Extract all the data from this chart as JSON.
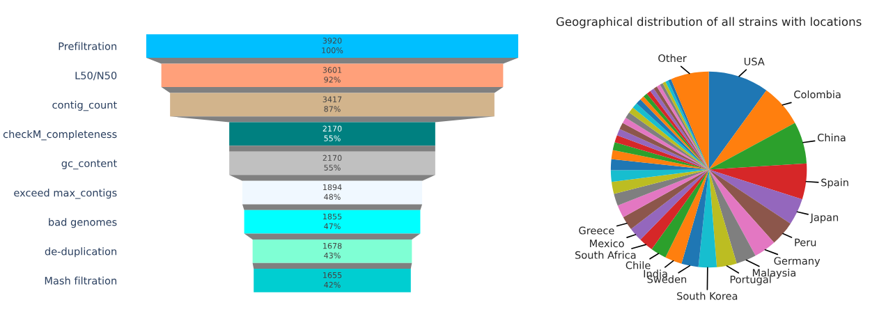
{
  "chart_data": [
    {
      "type": "other",
      "categories": [
        "Prefiltration",
        "L50/N50",
        "contig_count",
        "checkM_completeness",
        "gc_content",
        "exceed max_contigs",
        "bad genomes",
        "de-duplication",
        "Mash filtration"
      ],
      "values": [
        3920,
        3601,
        3417,
        2170,
        2170,
        1894,
        1855,
        1678,
        1655
      ],
      "data_labels": true,
      "annotations": [
        {
          "text": "100%",
          "y": "Prefiltration"
        },
        {
          "text": "92%",
          "y": "L50/N50"
        },
        {
          "text": "87%",
          "y": "contig_count"
        },
        {
          "text": "55%",
          "y": "checkM_completeness"
        },
        {
          "text": "55%",
          "y": "gc_content"
        },
        {
          "text": "48%",
          "y": "exceed max_contigs"
        },
        {
          "text": "47%",
          "y": "bad genomes"
        },
        {
          "text": "43%",
          "y": "de-duplication"
        },
        {
          "text": "42%",
          "y": "Mash filtration"
        }
      ],
      "colors": [
        "#00bfff",
        "#ffa07a",
        "#d2b48c",
        "#008080",
        "#c0c0c0",
        "#f0f8ff",
        "#00ffff",
        "#7fffd4",
        "#00ced1"
      ]
    },
    {
      "type": "pie",
      "title": "Geographical distribution of all strains with locations",
      "categories": [
        "USA",
        "Colombia",
        "China",
        "Spain",
        "Japan",
        "Peru",
        "Germany",
        "Malaysia",
        "Portugal",
        "South Korea",
        "Sweden",
        "India",
        "Chile",
        "South Africa",
        "Mexico",
        "Greece",
        null,
        null,
        null,
        null,
        null,
        null,
        null,
        null,
        null,
        null,
        null,
        null,
        null,
        null,
        null,
        null,
        null,
        null,
        null,
        null,
        null,
        null,
        null,
        null,
        null,
        "Other"
      ],
      "values": [
        10,
        7.1,
        6.9,
        5.9,
        4.4,
        4.1,
        3.7,
        3.3,
        3.3,
        3.0,
        2.8,
        2.8,
        2.6,
        2.4,
        2.3,
        2.3,
        2.1,
        2.0,
        2.0,
        1.9,
        1.8,
        1.5,
        1.3,
        1.2,
        1.1,
        1.1,
        1.0,
        1.0,
        1.0,
        0.9,
        0.9,
        0.7,
        0.7,
        0.7,
        0.7,
        0.6,
        0.6,
        0.5,
        0.5,
        0.5,
        0.5,
        6.3
      ],
      "colors": [
        "#1f77b4",
        "#ff7f0e",
        "#2ca02c",
        "#d62728",
        "#9467bd",
        "#8c564b",
        "#e377c2",
        "#7f7f7f",
        "#bcbd22",
        "#17becf",
        "#1f77b4",
        "#ff7f0e",
        "#2ca02c",
        "#d62728",
        "#9467bd",
        "#8c564b",
        "#e377c2",
        "#7f7f7f",
        "#bcbd22",
        "#17becf",
        "#1f77b4",
        "#ff7f0e",
        "#2ca02c",
        "#d62728",
        "#9467bd",
        "#8c564b",
        "#e377c2",
        "#7f7f7f",
        "#bcbd22",
        "#17becf",
        "#1f77b4",
        "#ff7f0e",
        "#2ca02c",
        "#d62728",
        "#9467bd",
        "#8c564b",
        "#e377c2",
        "#7f7f7f",
        "#bcbd22",
        "#17becf",
        "#1f77b4",
        "#ff7f0e"
      ]
    }
  ]
}
